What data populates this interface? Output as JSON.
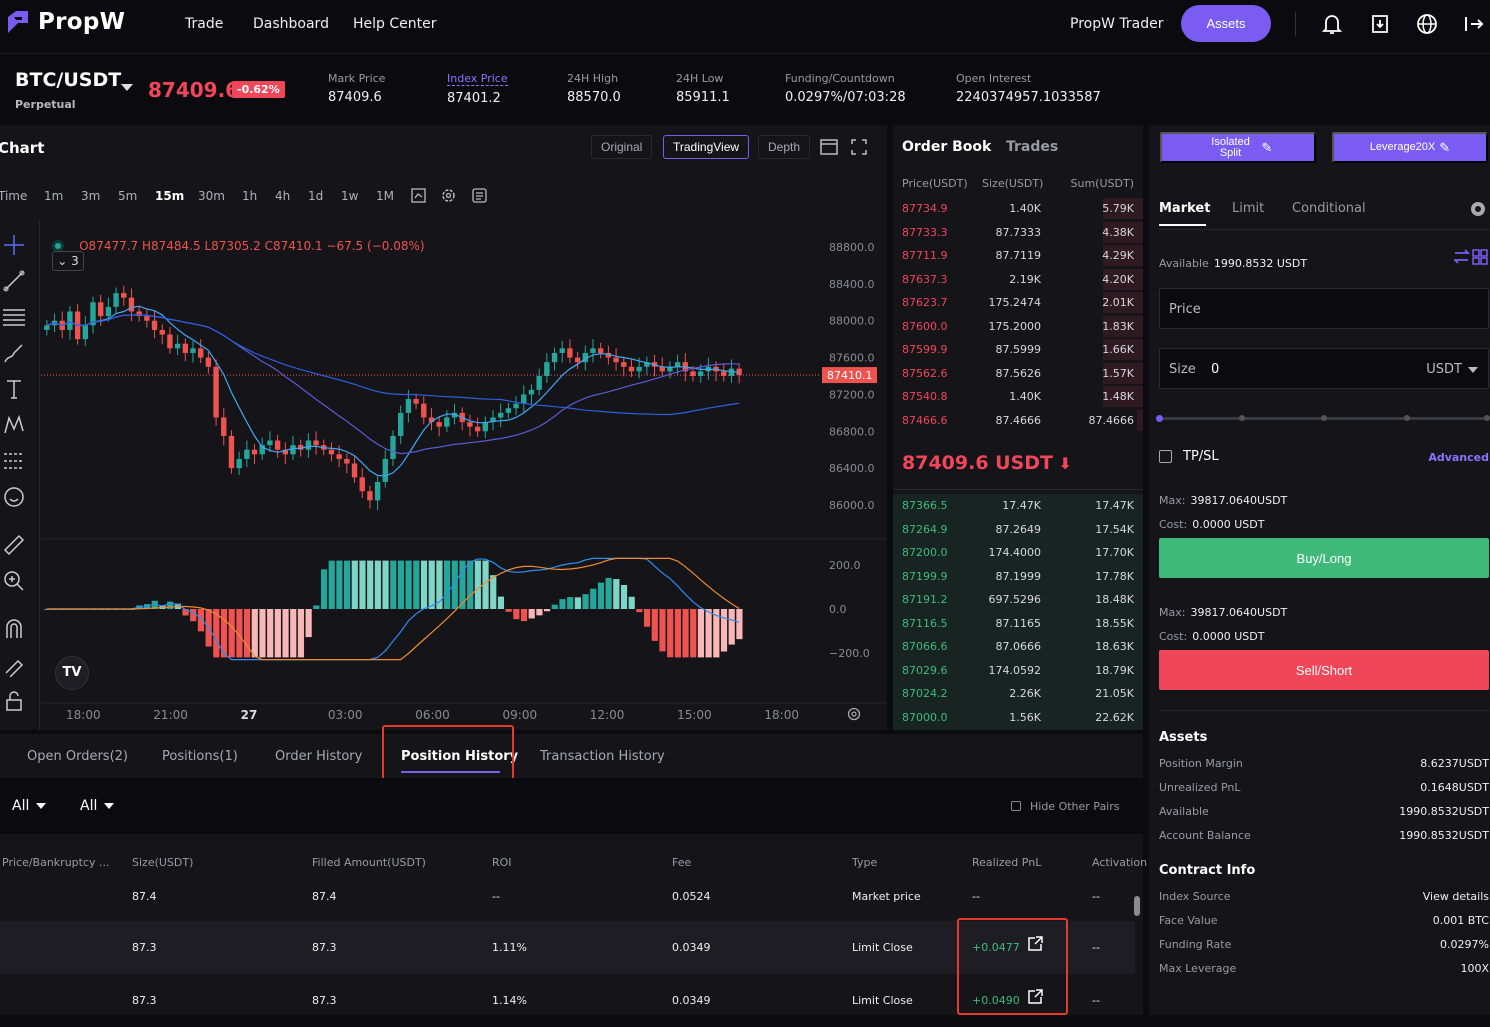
{
  "nav": {
    "logo": "PropW",
    "links": [
      "Trade",
      "Dashboard",
      "Help Center"
    ],
    "trader": "PropW Trader",
    "assets": "Assets"
  },
  "ticker": {
    "pair": "BTC/USDT",
    "type": "Perpetual",
    "last_price": "87409.6",
    "change": "-0.62%",
    "stats": [
      {
        "label": "Mark Price",
        "value": "87409.6"
      },
      {
        "label": "Index Price",
        "value": "87401.2"
      },
      {
        "label": "24H High",
        "value": "88570.0"
      },
      {
        "label": "24H Low",
        "value": "85911.1"
      },
      {
        "label": "Funding/Countdown",
        "value": "0.0297%/07:03:28"
      },
      {
        "label": "Open Interest",
        "value": "2240374957.1033587"
      }
    ]
  },
  "chart": {
    "title": "Chart",
    "views": [
      "Original",
      "TradingView",
      "Depth"
    ],
    "active_view": "TradingView",
    "timeframes": [
      "Time",
      "1m",
      "3m",
      "5m",
      "15m",
      "30m",
      "1h",
      "4h",
      "1d",
      "1w",
      "1M"
    ],
    "active_timeframe": "15m",
    "legend": {
      "o": "87477.7",
      "h": "87484.5",
      "l": "87305.2",
      "c": "87410.1",
      "chg": "−67.5 (−0.08%)"
    },
    "indicator_count": "3",
    "price_axis": [
      "88800.0",
      "88400.0",
      "88000.0",
      "87600.0",
      "87200.0",
      "86800.0",
      "86400.0",
      "86000.0"
    ],
    "current_label": "87410.1",
    "macd_axis": [
      "200.0",
      "0.0",
      "−200.0"
    ],
    "time_axis": [
      "18:00",
      "21:00",
      "27",
      "03:00",
      "06:00",
      "09:00",
      "12:00",
      "15:00",
      "18:00"
    ],
    "colors": {
      "up": "#26a69a",
      "down": "#ef5350"
    }
  },
  "orderbook": {
    "tabs": [
      "Order Book",
      "Trades"
    ],
    "headers": [
      "Price(USDT)",
      "Size(USDT)",
      "Sum(USDT)"
    ],
    "asks": [
      [
        "87734.9",
        "1.40K",
        "5.79K"
      ],
      [
        "87733.3",
        "87.7333",
        "4.38K"
      ],
      [
        "87711.9",
        "87.7119",
        "4.29K"
      ],
      [
        "87637.3",
        "2.19K",
        "4.20K"
      ],
      [
        "87623.7",
        "175.2474",
        "2.01K"
      ],
      [
        "87600.0",
        "175.2000",
        "1.83K"
      ],
      [
        "87599.9",
        "87.5999",
        "1.66K"
      ],
      [
        "87562.6",
        "87.5626",
        "1.57K"
      ],
      [
        "87540.8",
        "1.40K",
        "1.48K"
      ],
      [
        "87466.6",
        "87.4666",
        "87.4666"
      ]
    ],
    "mid": "87409.6 USDT",
    "bids": [
      [
        "87366.5",
        "17.47K",
        "17.47K"
      ],
      [
        "87264.9",
        "87.2649",
        "17.54K"
      ],
      [
        "87200.0",
        "174.4000",
        "17.70K"
      ],
      [
        "87199.9",
        "87.1999",
        "17.78K"
      ],
      [
        "87191.2",
        "697.5296",
        "18.48K"
      ],
      [
        "87116.5",
        "87.1165",
        "18.55K"
      ],
      [
        "87066.6",
        "87.0666",
        "18.63K"
      ],
      [
        "87029.6",
        "174.0592",
        "18.79K"
      ],
      [
        "87024.2",
        "2.26K",
        "21.05K"
      ],
      [
        "87000.0",
        "1.56K",
        "22.62K"
      ]
    ]
  },
  "trade": {
    "margin_mode": "Isolated Split",
    "leverage": "Leverage20X",
    "tabs": [
      "Market",
      "Limit",
      "Conditional"
    ],
    "available_label": "Available",
    "available_value": "1990.8532 USDT",
    "price_placeholder": "Price",
    "size_label": "Size",
    "size_value": "0",
    "size_unit": "USDT",
    "tpsl": "TP/SL",
    "advanced": "Advanced",
    "buy": {
      "max_label": "Max:",
      "max_value": "39817.0640USDT",
      "cost_label": "Cost:",
      "cost_value": "0.0000 USDT",
      "button": "Buy/Long"
    },
    "sell": {
      "max_label": "Max:",
      "max_value": "39817.0640USDT",
      "cost_label": "Cost:",
      "cost_value": "0.0000 USDT",
      "button": "Sell/Short"
    },
    "assets_title": "Assets",
    "assets": [
      {
        "k": "Position Margin",
        "v": "8.6237USDT"
      },
      {
        "k": "Unrealized PnL",
        "v": "0.1648USDT"
      },
      {
        "k": "Available",
        "v": "1990.8532USDT"
      },
      {
        "k": "Account Balance",
        "v": "1990.8532USDT"
      }
    ],
    "contract_title": "Contract Info",
    "contract": [
      {
        "k": "Index Source",
        "v": "View details"
      },
      {
        "k": "Face Value",
        "v": "0.001 BTC"
      },
      {
        "k": "Funding Rate",
        "v": "0.0297%"
      },
      {
        "k": "Max Leverage",
        "v": "100X"
      }
    ],
    "colors": {
      "buy": "#3fba7a",
      "sell": "#f0465a",
      "accent": "#7b5cf2"
    }
  },
  "bottom": {
    "tabs": [
      "Open Orders(2)",
      "Positions(1)",
      "Order History",
      "Position History",
      "Transaction History"
    ],
    "active_tab": "Position History",
    "filters": [
      "All",
      "All"
    ],
    "hide_other_pairs": "Hide Other Pairs",
    "columns": [
      "Price/Bankruptcy ...",
      "Size(USDT)",
      "Filled Amount(USDT)",
      "ROI",
      "Fee",
      "Type",
      "Realized PnL",
      "Activation"
    ],
    "rows": [
      {
        "size": "87.4",
        "filled": "87.4",
        "roi": "--",
        "fee": "0.0524",
        "type": "Market price",
        "pnl": "--",
        "act": "--"
      },
      {
        "size": "87.3",
        "filled": "87.3",
        "roi": "1.11%",
        "fee": "0.0349",
        "type": "Limit Close",
        "pnl": "+0.0477",
        "act": "--"
      },
      {
        "size": "87.3",
        "filled": "87.3",
        "roi": "1.14%",
        "fee": "0.0349",
        "type": "Limit Close",
        "pnl": "+0.0490",
        "act": "--"
      }
    ]
  }
}
